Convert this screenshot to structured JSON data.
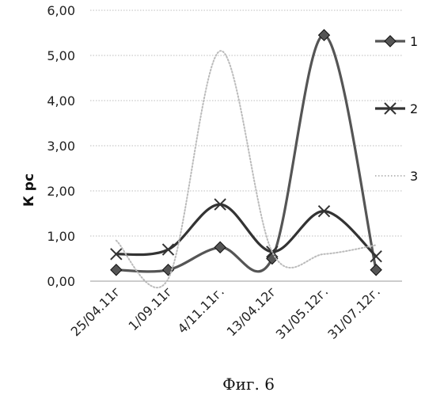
{
  "chart_data": {
    "type": "line",
    "categories": [
      "25/04.11г",
      "1/09.11г",
      "4/11.11г.",
      "13/04.12г",
      "31/05.12г.",
      "31/07.12г."
    ],
    "series": [
      {
        "name": "1",
        "values": [
          0.25,
          0.25,
          0.75,
          0.5,
          5.45,
          0.25
        ],
        "color": "#555555",
        "marker": "diamond",
        "style": "solid"
      },
      {
        "name": "2",
        "values": [
          0.6,
          0.7,
          1.7,
          0.65,
          1.55,
          0.55
        ],
        "color": "#333333",
        "marker": "cross",
        "style": "solid"
      },
      {
        "name": "3",
        "values": [
          0.9,
          0.05,
          5.1,
          0.65,
          0.6,
          0.8
        ],
        "color": "#bbbbbb",
        "marker": "none",
        "style": "dotted"
      }
    ],
    "ylabel": "К рс",
    "xlabel": "",
    "ylim": [
      0,
      6
    ],
    "yticks": [
      "0,00",
      "1,00",
      "2,00",
      "3,00",
      "4,00",
      "5,00",
      "6,00"
    ],
    "grid": true,
    "legend": "right",
    "caption": "Фиг. 6"
  }
}
